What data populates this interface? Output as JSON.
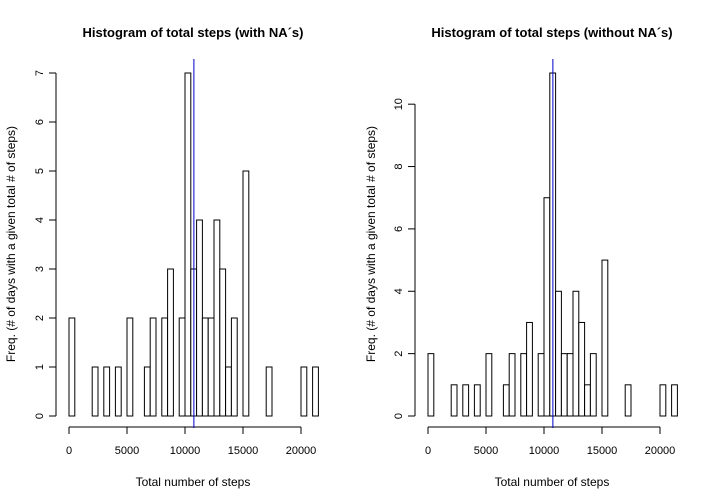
{
  "chart_data": [
    {
      "type": "bar",
      "title": "Histogram of total steps (with NA´s)",
      "xlabel": "Total number of steps",
      "ylabel": "Freq. (# of days with a given total # of steps)",
      "bin_width": 500,
      "bin_starts": [
        0,
        500,
        1000,
        1500,
        2000,
        2500,
        3000,
        3500,
        4000,
        4500,
        5000,
        5500,
        6000,
        6500,
        7000,
        7500,
        8000,
        8500,
        9000,
        9500,
        10000,
        10500,
        11000,
        11500,
        12000,
        12500,
        13000,
        13500,
        14000,
        14500,
        15000,
        15500,
        16000,
        16500,
        17000,
        17500,
        18000,
        18500,
        19000,
        19500,
        20000,
        20500,
        21000
      ],
      "values": [
        2,
        0,
        0,
        0,
        1,
        0,
        1,
        0,
        1,
        0,
        2,
        0,
        0,
        1,
        2,
        0,
        2,
        3,
        0,
        2,
        7,
        3,
        4,
        2,
        2,
        4,
        3,
        1,
        2,
        0,
        5,
        0,
        0,
        0,
        1,
        0,
        0,
        0,
        0,
        0,
        1,
        0,
        1
      ],
      "xlim": [
        0,
        21500
      ],
      "ylim": [
        0,
        7
      ],
      "xticks": [
        0,
        5000,
        10000,
        15000,
        20000
      ],
      "yticks": [
        0,
        1,
        2,
        3,
        4,
        5,
        6,
        7
      ],
      "mean_line": 10766,
      "line_color": "#0000cc"
    },
    {
      "type": "bar",
      "title": "Histogram of total steps (without NA´s)",
      "xlabel": "Total number of steps",
      "ylabel": "Freq. (# of days with a given total # of steps)",
      "bin_width": 500,
      "bin_starts": [
        0,
        500,
        1000,
        1500,
        2000,
        2500,
        3000,
        3500,
        4000,
        4500,
        5000,
        5500,
        6000,
        6500,
        7000,
        7500,
        8000,
        8500,
        9000,
        9500,
        10000,
        10500,
        11000,
        11500,
        12000,
        12500,
        13000,
        13500,
        14000,
        14500,
        15000,
        15500,
        16000,
        16500,
        17000,
        17500,
        18000,
        18500,
        19000,
        19500,
        20000,
        20500,
        21000
      ],
      "values": [
        2,
        0,
        0,
        0,
        1,
        0,
        1,
        0,
        1,
        0,
        2,
        0,
        0,
        1,
        2,
        0,
        2,
        3,
        0,
        2,
        7,
        11,
        4,
        2,
        2,
        4,
        3,
        1,
        2,
        0,
        5,
        0,
        0,
        0,
        1,
        0,
        0,
        0,
        0,
        0,
        1,
        0,
        1
      ],
      "xlim": [
        0,
        21500
      ],
      "ylim": [
        0,
        11
      ],
      "xticks": [
        0,
        5000,
        10000,
        15000,
        20000
      ],
      "yticks": [
        0,
        2,
        4,
        6,
        8,
        10
      ],
      "mean_line": 10766,
      "line_color": "#0000cc"
    }
  ]
}
